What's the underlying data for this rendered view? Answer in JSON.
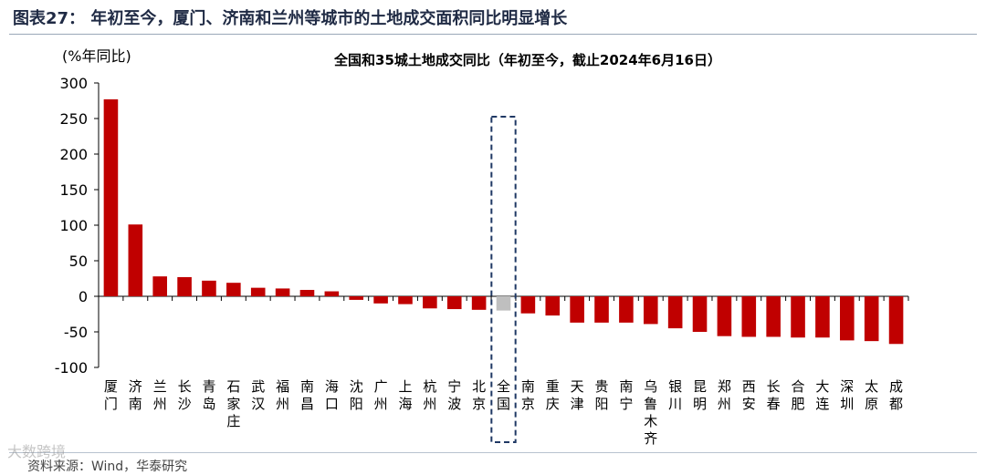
{
  "header": {
    "title": "图表27：  年初至今，厦门、济南和兰州等城市的土地成交面积同比明显增长"
  },
  "footer": {
    "source": "资料来源：Wind，华泰研究",
    "watermark": "大数跨境"
  },
  "colors": {
    "bar": "#c00000",
    "highlight_bar": "#bfbfbf",
    "highlight_box": "#1f3864"
  },
  "chart_data": {
    "type": "bar",
    "title": "全国和35城土地成交同比（年初至今，截止2024年6月16日）",
    "ylabel": "(%年同比)",
    "xlabel": "",
    "ylim": [
      -100,
      300
    ],
    "yticks": [
      300,
      250,
      200,
      150,
      100,
      50,
      0,
      -50,
      -100
    ],
    "grid": false,
    "highlight": "全国",
    "categories": [
      "厦门",
      "济南",
      "兰州",
      "长沙",
      "青岛",
      "石家庄",
      "武汉",
      "福州",
      "南昌",
      "海口",
      "沈阳",
      "广州",
      "上海",
      "杭州",
      "宁波",
      "北京",
      "全国",
      "南京",
      "重庆",
      "天津",
      "贵阳",
      "南宁",
      "乌鲁木齐",
      "银川",
      "昆明",
      "郑州",
      "西安",
      "长春",
      "合肥",
      "大连",
      "深圳",
      "太原",
      "成都"
    ],
    "values": [
      277,
      101,
      28,
      27,
      22,
      19,
      12,
      11,
      9,
      7,
      -5,
      -10,
      -11,
      -17,
      -18,
      -19,
      -20,
      -24,
      -27,
      -37,
      -37,
      -37,
      -39,
      -45,
      -50,
      -56,
      -57,
      -57,
      -58,
      -58,
      -62,
      -63,
      -67
    ]
  }
}
